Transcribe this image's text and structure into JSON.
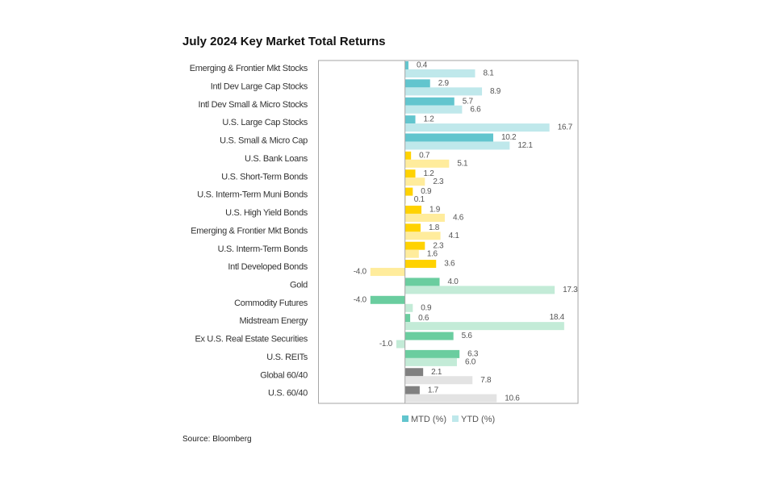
{
  "title": "July 2024 Key Market Total Returns",
  "source": "Source: Bloomberg",
  "chart_data": {
    "type": "bar",
    "orientation": "horizontal",
    "title": "July 2024 Key Market Total Returns",
    "xlim": [
      -10,
      20
    ],
    "grid": false,
    "legend_position": "bottom",
    "legend": [
      "MTD (%)",
      "YTD (%)"
    ],
    "categories": [
      "Emerging & Frontier Mkt Stocks",
      "Intl Dev Large Cap Stocks",
      "Intl Dev Small & Micro Stocks",
      "U.S. Large Cap Stocks",
      "U.S. Small & Micro Cap",
      "U.S. Bank Loans",
      "U.S. Short-Term Bonds",
      "U.S. Interm-Term Muni Bonds",
      "U.S. High Yield Bonds",
      "Emerging & Frontier Mkt Bonds",
      "U.S. Interm-Term Bonds",
      "Intl Developed Bonds",
      "Gold",
      "Commodity Futures",
      "Midstream Energy",
      "Ex U.S. Real Estate Securities",
      "U.S. REITs",
      "Global 60/40",
      "U.S. 60/40"
    ],
    "groups": [
      "equity",
      "equity",
      "equity",
      "equity",
      "equity",
      "bond",
      "bond",
      "bond",
      "bond",
      "bond",
      "bond",
      "bond",
      "real",
      "real",
      "real",
      "real",
      "real",
      "balanced",
      "balanced"
    ],
    "series": [
      {
        "name": "MTD (%)",
        "values": [
          0.4,
          2.9,
          5.7,
          1.2,
          10.2,
          0.7,
          1.2,
          0.9,
          1.9,
          1.8,
          2.3,
          3.6,
          4.0,
          -4.0,
          0.6,
          5.6,
          6.3,
          2.1,
          1.7
        ]
      },
      {
        "name": "YTD (%)",
        "values": [
          8.1,
          8.9,
          6.6,
          16.7,
          12.1,
          5.1,
          2.3,
          0.1,
          4.6,
          4.1,
          1.6,
          -4.0,
          17.3,
          0.9,
          18.4,
          -1.0,
          6.0,
          7.8,
          10.6
        ]
      }
    ],
    "colors": {
      "equity": [
        "#62C5CE",
        "#BFE8EB"
      ],
      "bond": [
        "#FFD200",
        "#FFEC9C"
      ],
      "real": [
        "#6ACD9F",
        "#C3EBD7"
      ],
      "balanced": [
        "#808080",
        "#E3E3E3"
      ]
    }
  }
}
